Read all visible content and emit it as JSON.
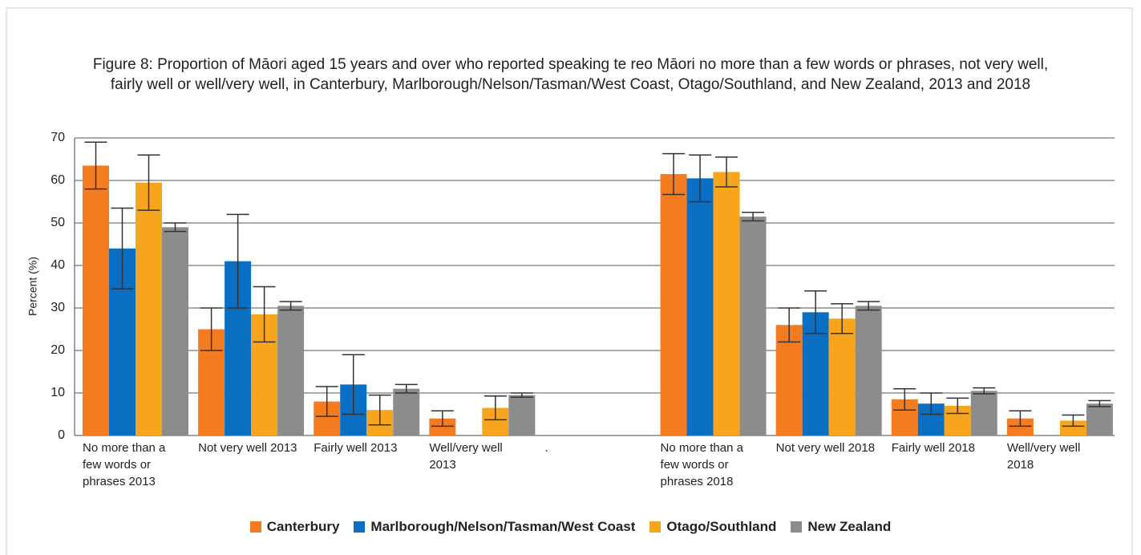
{
  "chart_data": {
    "type": "bar",
    "title": "Figure 8: Proportion of Māori aged 15 years and over who reported speaking te reo Māori no more than a few words or phrases, not very well, fairly well or well/very well, in Canterbury, Marlborough/Nelson/Tasman/West Coast, Otago/Southland, and New Zealand, 2013 and 2018",
    "y_label": "Percent (%)",
    "categories": [
      "No more than a few words or phrases 2013",
      "Not very well 2013",
      "Fairly well 2013",
      "Well/very well 2013",
      ".",
      "No more than a few words or phrases 2018",
      "Not very well 2018",
      "Fairly well 2018",
      "Well/very well 2018"
    ],
    "series": [
      {
        "name": "Canterbury",
        "color": "#f47b20",
        "values": [
          63.5,
          25,
          8,
          4,
          null,
          61.5,
          26,
          8.5,
          4
        ],
        "errors": [
          5.5,
          5,
          3.5,
          1.8,
          null,
          4.8,
          4,
          2.5,
          1.8
        ]
      },
      {
        "name": "Marlborough/Nelson/Tasman/West Coast",
        "color": "#0a6ec2",
        "values": [
          44,
          41,
          12,
          null,
          null,
          60.5,
          29,
          7.5,
          null
        ],
        "errors": [
          9.5,
          11,
          7,
          null,
          null,
          5.5,
          5,
          2.5,
          null
        ]
      },
      {
        "name": "Otago/Southland",
        "color": "#f7a51c",
        "values": [
          59.5,
          28.5,
          6,
          6.5,
          null,
          62,
          27.5,
          7,
          3.5
        ],
        "errors": [
          6.5,
          6.5,
          3.5,
          2.8,
          null,
          3.5,
          3.5,
          1.8,
          1.3
        ]
      },
      {
        "name": "New Zealand",
        "color": "#8c8c8c",
        "values": [
          49,
          30.5,
          11,
          9.5,
          null,
          51.5,
          30.5,
          10.5,
          7.5
        ],
        "errors": [
          1,
          1,
          1,
          0.5,
          null,
          1,
          1,
          0.7,
          0.7
        ]
      }
    ],
    "ylim": [
      0,
      70
    ],
    "yticks": [
      0,
      10,
      20,
      30,
      40,
      50,
      60,
      70
    ],
    "grid": true,
    "legend": "bottom"
  }
}
